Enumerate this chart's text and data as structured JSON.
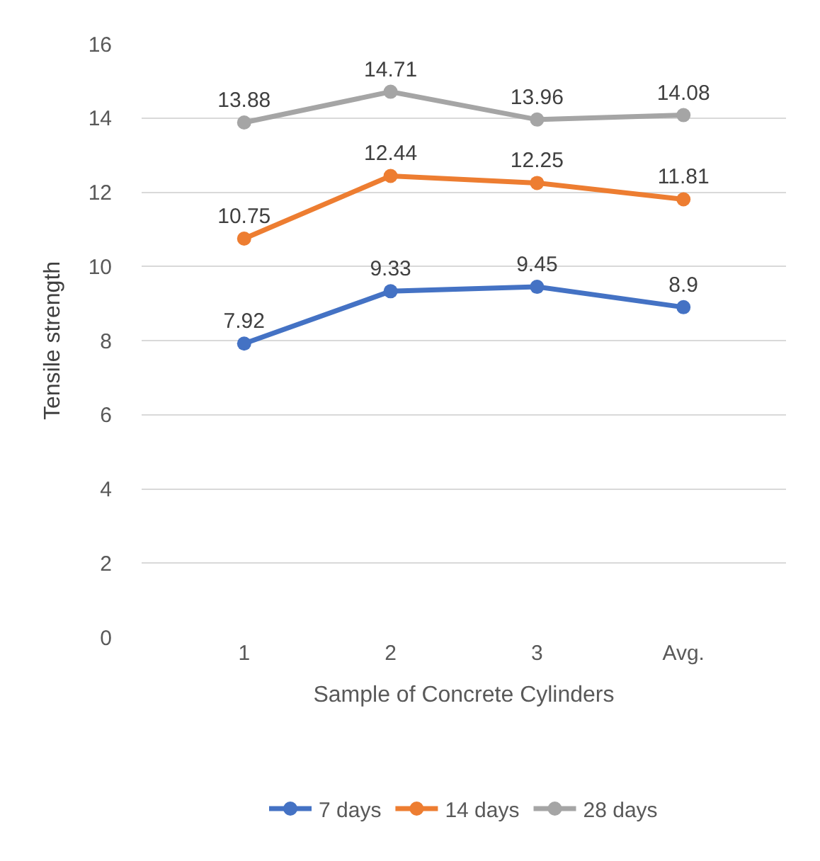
{
  "chart_data": {
    "type": "line",
    "xlabel": "Sample of Concrete Cylinders",
    "ylabel": "Tensile strength",
    "categories": [
      "1",
      "2",
      "3",
      "Avg."
    ],
    "series": [
      {
        "name": "7 days",
        "color": "#4472c4",
        "values": [
          7.92,
          9.33,
          9.45,
          8.9
        ]
      },
      {
        "name": "14 days",
        "color": "#ed7d31",
        "values": [
          10.75,
          12.44,
          12.25,
          11.81
        ]
      },
      {
        "name": "28 days",
        "color": "#a5a5a5",
        "values": [
          13.88,
          14.71,
          13.96,
          14.08
        ]
      }
    ],
    "ylim": [
      0,
      16
    ],
    "yticks": [
      0,
      2,
      4,
      6,
      8,
      10,
      12,
      14,
      16
    ],
    "grid": "y",
    "legend": "bottom",
    "marker": "circle",
    "line_style": "solid",
    "data_labels": true
  }
}
